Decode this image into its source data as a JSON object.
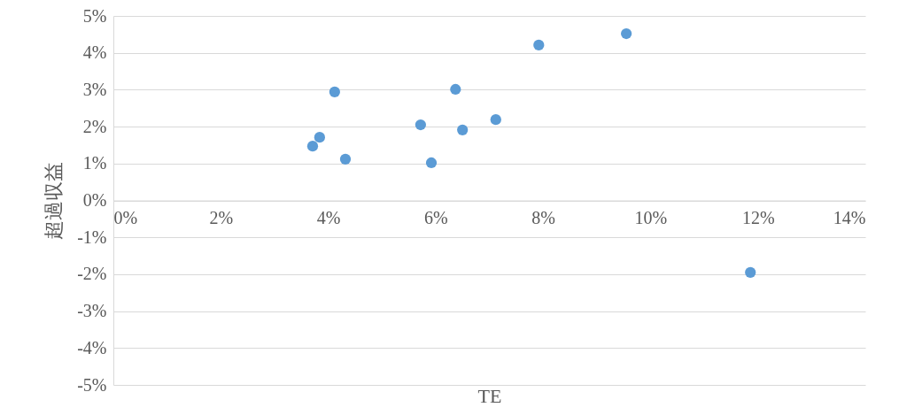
{
  "chart_data": {
    "type": "scatter",
    "xlabel": "TE",
    "ylabel": "超過収益",
    "x": [
      3.71,
      3.84,
      4.12,
      4.32,
      5.72,
      5.92,
      6.37,
      6.5,
      7.12,
      7.92,
      9.55,
      11.86
    ],
    "series": [
      {
        "color": "#5b9bd5",
        "values": [
          1.47,
          1.71,
          2.94,
          1.12,
          2.05,
          1.02,
          3.01,
          1.91,
          2.19,
          4.21,
          4.52,
          -1.95
        ]
      }
    ],
    "xlim": [
      0,
      14
    ],
    "ylim": [
      -5,
      5
    ],
    "xticks": [
      {
        "value": 0,
        "label": "0%"
      },
      {
        "value": 2,
        "label": "2%"
      },
      {
        "value": 4,
        "label": "4%"
      },
      {
        "value": 6,
        "label": "6%"
      },
      {
        "value": 8,
        "label": "8%"
      },
      {
        "value": 10,
        "label": "10%"
      },
      {
        "value": 12,
        "label": "12%"
      },
      {
        "value": 14,
        "label": "14%"
      }
    ],
    "yticks": [
      {
        "value": -5,
        "label": "-5%"
      },
      {
        "value": -4,
        "label": "-4%"
      },
      {
        "value": -3,
        "label": "-3%"
      },
      {
        "value": -2,
        "label": "-2%"
      },
      {
        "value": -1,
        "label": "-1%"
      },
      {
        "value": 0,
        "label": "0%"
      },
      {
        "value": 1,
        "label": "1%"
      },
      {
        "value": 2,
        "label": "2%"
      },
      {
        "value": 3,
        "label": "3%"
      },
      {
        "value": 4,
        "label": "4%"
      },
      {
        "value": 5,
        "label": "5%"
      }
    ],
    "grid": "y"
  }
}
